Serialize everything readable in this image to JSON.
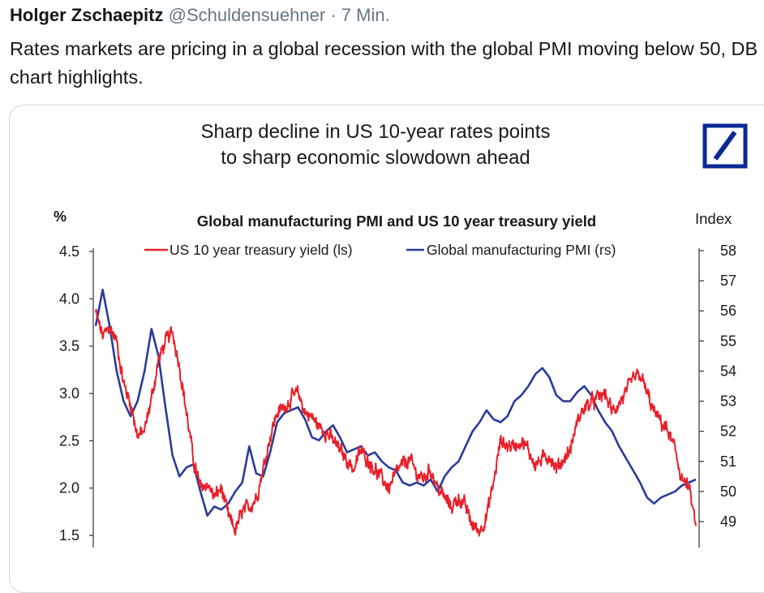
{
  "tweet": {
    "author_name": "Holger Zschaepitz",
    "handle": "@Schuldensuehner",
    "separator": "·",
    "time": "7 Min.",
    "text": "Rates markets are pricing in a global recession with the global PMI moving below 50, DB chart highlights."
  },
  "image": {
    "headline_line1": "Sharp decline in US 10-year rates points",
    "headline_line2": "to sharp economic slowdown ahead",
    "logo": "deutsche-bank-logo"
  },
  "chart_data": {
    "type": "line",
    "title": "Global manufacturing PMI and US 10 year treasury yield",
    "left_axis_label": "%",
    "right_axis_label": "Index",
    "left_ticks": [
      "4.5",
      "4.0",
      "3.5",
      "3.0",
      "2.5",
      "2.0",
      "1.5"
    ],
    "right_ticks": [
      "58",
      "57",
      "56",
      "55",
      "54",
      "53",
      "52",
      "51",
      "50",
      "49"
    ],
    "ylim_left": [
      1.5,
      4.5
    ],
    "ylim_right": [
      49,
      58
    ],
    "x_period_approx": [
      2011.0,
      2019.6
    ],
    "legend": [
      "US 10 year treasury yield (ls)",
      "Global manufacturing PMI (rs)"
    ],
    "legend_placement": "top",
    "series": [
      {
        "name": "US 10 year treasury yield (ls)",
        "axis": "left",
        "color": "#e8202a",
        "x": [
          2011.0,
          2011.1,
          2011.2,
          2011.3,
          2011.4,
          2011.5,
          2011.6,
          2011.7,
          2011.8,
          2011.9,
          2012.0,
          2012.1,
          2012.2,
          2012.3,
          2012.4,
          2012.5,
          2012.6,
          2012.7,
          2012.8,
          2012.9,
          2013.0,
          2013.1,
          2013.2,
          2013.3,
          2013.4,
          2013.5,
          2013.6,
          2013.7,
          2013.8,
          2013.9,
          2014.0,
          2014.1,
          2014.2,
          2014.3,
          2014.4,
          2014.5,
          2014.6,
          2014.7,
          2014.8,
          2014.9,
          2015.0,
          2015.1,
          2015.2,
          2015.3,
          2015.4,
          2015.5,
          2015.6,
          2015.7,
          2015.8,
          2015.9,
          2016.0,
          2016.1,
          2016.2,
          2016.3,
          2016.4,
          2016.5,
          2016.6,
          2016.7,
          2016.8,
          2016.9,
          2017.0,
          2017.1,
          2017.2,
          2017.3,
          2017.4,
          2017.5,
          2017.6,
          2017.7,
          2017.8,
          2017.9,
          2018.0,
          2018.1,
          2018.2,
          2018.3,
          2018.4,
          2018.5,
          2018.6,
          2018.7,
          2018.8,
          2018.9,
          2019.0,
          2019.1,
          2019.2,
          2019.3,
          2019.4,
          2019.5,
          2019.6
        ],
        "values": [
          3.85,
          3.6,
          3.7,
          3.55,
          3.1,
          2.9,
          2.55,
          2.6,
          2.95,
          3.35,
          3.55,
          3.65,
          3.3,
          2.8,
          2.3,
          2.0,
          2.05,
          1.9,
          2.0,
          1.7,
          1.55,
          1.75,
          1.8,
          1.9,
          2.2,
          2.55,
          2.8,
          2.85,
          2.95,
          3.0,
          2.8,
          2.75,
          2.65,
          2.6,
          2.5,
          2.4,
          2.3,
          2.2,
          2.4,
          2.3,
          2.2,
          2.1,
          2.0,
          2.15,
          2.25,
          2.3,
          2.15,
          2.1,
          2.2,
          2.0,
          1.9,
          1.8,
          1.9,
          1.8,
          1.6,
          1.55,
          1.7,
          2.05,
          2.5,
          2.45,
          2.45,
          2.5,
          2.4,
          2.25,
          2.3,
          2.35,
          2.2,
          2.3,
          2.4,
          2.7,
          2.85,
          2.9,
          2.95,
          3.0,
          2.8,
          2.9,
          3.0,
          3.15,
          3.2,
          3.0,
          2.8,
          2.7,
          2.6,
          2.4,
          2.1,
          2.0,
          1.6
        ]
      },
      {
        "name": "Global manufacturing PMI (rs)",
        "axis": "right",
        "color": "#2b3b99",
        "x": [
          2011.0,
          2011.1,
          2011.2,
          2011.3,
          2011.4,
          2011.5,
          2011.6,
          2011.7,
          2011.8,
          2011.9,
          2012.0,
          2012.1,
          2012.2,
          2012.3,
          2012.4,
          2012.5,
          2012.6,
          2012.7,
          2012.8,
          2012.9,
          2013.0,
          2013.1,
          2013.2,
          2013.3,
          2013.4,
          2013.5,
          2013.6,
          2013.7,
          2013.8,
          2013.9,
          2014.0,
          2014.1,
          2014.2,
          2014.3,
          2014.4,
          2014.5,
          2014.6,
          2014.7,
          2014.8,
          2014.9,
          2015.0,
          2015.1,
          2015.2,
          2015.3,
          2015.4,
          2015.5,
          2015.6,
          2015.7,
          2015.8,
          2015.9,
          2016.0,
          2016.1,
          2016.2,
          2016.3,
          2016.4,
          2016.5,
          2016.6,
          2016.7,
          2016.8,
          2016.9,
          2017.0,
          2017.1,
          2017.2,
          2017.3,
          2017.4,
          2017.5,
          2017.6,
          2017.7,
          2017.8,
          2017.9,
          2018.0,
          2018.1,
          2018.2,
          2018.3,
          2018.4,
          2018.5,
          2018.6,
          2018.7,
          2018.8,
          2018.9,
          2019.0,
          2019.1,
          2019.2,
          2019.3,
          2019.4,
          2019.5,
          2019.6
        ],
        "values": [
          55.5,
          56.7,
          55.5,
          54.0,
          53.0,
          52.5,
          53.0,
          54.0,
          55.4,
          54.5,
          52.8,
          51.2,
          50.5,
          50.8,
          50.9,
          50.0,
          49.2,
          49.5,
          49.4,
          49.6,
          50.0,
          50.3,
          51.5,
          50.6,
          50.5,
          51.3,
          52.3,
          52.6,
          52.7,
          52.8,
          52.4,
          51.8,
          51.7,
          52.0,
          52.2,
          51.8,
          51.3,
          51.4,
          51.5,
          51.2,
          51.3,
          51.0,
          50.8,
          50.7,
          50.3,
          50.2,
          50.3,
          50.2,
          50.4,
          50.0,
          50.5,
          50.8,
          51.0,
          51.5,
          52.0,
          52.3,
          52.7,
          52.4,
          52.3,
          52.5,
          53.0,
          53.2,
          53.5,
          53.9,
          54.1,
          53.8,
          53.2,
          53.0,
          53.0,
          53.3,
          53.5,
          53.2,
          52.7,
          52.3,
          52.0,
          51.5,
          51.1,
          50.7,
          50.3,
          49.8,
          49.6,
          49.8,
          49.9,
          50.0,
          50.2,
          50.3,
          50.4
        ]
      }
    ]
  }
}
